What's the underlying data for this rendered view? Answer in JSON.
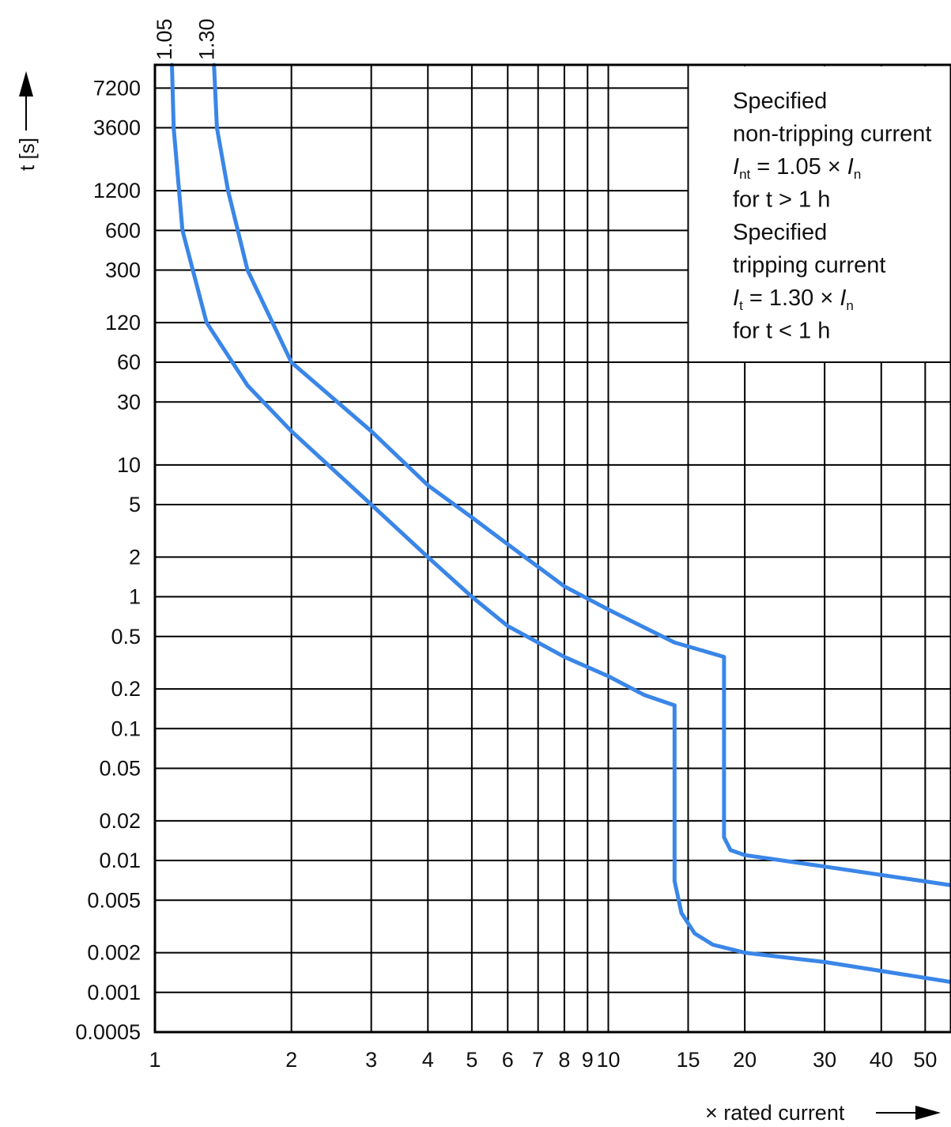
{
  "chart_data": {
    "type": "line",
    "title": "",
    "xlabel": "× rated current",
    "ylabel": "t [s]",
    "x_scale": "log",
    "y_scale": "log",
    "xlim": [
      1,
      57
    ],
    "ylim": [
      0.0005,
      10800
    ],
    "x_ticks": [
      {
        "value": 1,
        "label": "1"
      },
      {
        "value": 2,
        "label": "2"
      },
      {
        "value": 3,
        "label": "3"
      },
      {
        "value": 4,
        "label": "4"
      },
      {
        "value": 5,
        "label": "5"
      },
      {
        "value": 6,
        "label": "6"
      },
      {
        "value": 7,
        "label": "7"
      },
      {
        "value": 8,
        "label": "8"
      },
      {
        "value": 9,
        "label": "9"
      },
      {
        "value": 10,
        "label": "10"
      },
      {
        "value": 15,
        "label": "15"
      },
      {
        "value": 20,
        "label": "20"
      },
      {
        "value": 30,
        "label": "30"
      },
      {
        "value": 40,
        "label": "40"
      },
      {
        "value": 50,
        "label": "50"
      }
    ],
    "y_ticks": [
      {
        "value": 7200,
        "label": "7200"
      },
      {
        "value": 3600,
        "label": "3600"
      },
      {
        "value": 1200,
        "label": "1200"
      },
      {
        "value": 600,
        "label": "600"
      },
      {
        "value": 300,
        "label": "300"
      },
      {
        "value": 120,
        "label": "120"
      },
      {
        "value": 60,
        "label": "60"
      },
      {
        "value": 30,
        "label": "30"
      },
      {
        "value": 10,
        "label": "10"
      },
      {
        "value": 5,
        "label": "5"
      },
      {
        "value": 2,
        "label": "2"
      },
      {
        "value": 1,
        "label": "1"
      },
      {
        "value": 0.5,
        "label": "0.5"
      },
      {
        "value": 0.2,
        "label": "0.2"
      },
      {
        "value": 0.1,
        "label": "0.1"
      },
      {
        "value": 0.05,
        "label": "0.05"
      },
      {
        "value": 0.02,
        "label": "0.02"
      },
      {
        "value": 0.01,
        "label": "0.01"
      },
      {
        "value": 0.005,
        "label": "0.005"
      },
      {
        "value": 0.002,
        "label": "0.002"
      },
      {
        "value": 0.001,
        "label": "0.001"
      },
      {
        "value": 0.0005,
        "label": "0.0005"
      }
    ],
    "top_markers": [
      {
        "value": 1.05,
        "label": "1.05"
      },
      {
        "value": 1.3,
        "label": "1.30"
      }
    ],
    "grid": true,
    "series": [
      {
        "color": "#3a86e8",
        "points": [
          [
            1.09,
            10800
          ],
          [
            1.1,
            3600
          ],
          [
            1.15,
            600
          ],
          [
            1.3,
            120
          ],
          [
            1.6,
            40
          ],
          [
            2,
            18
          ],
          [
            3,
            5
          ],
          [
            4,
            2
          ],
          [
            5,
            1
          ],
          [
            6,
            0.6
          ],
          [
            8,
            0.35
          ],
          [
            10,
            0.25
          ],
          [
            12,
            0.18
          ],
          [
            14,
            0.15
          ],
          [
            14,
            0.007
          ],
          [
            14.5,
            0.004
          ],
          [
            15.5,
            0.0028
          ],
          [
            17,
            0.0023
          ],
          [
            20,
            0.002
          ],
          [
            30,
            0.0017
          ],
          [
            57,
            0.0012
          ]
        ]
      },
      {
        "color": "#3a86e8",
        "points": [
          [
            1.35,
            10800
          ],
          [
            1.37,
            3600
          ],
          [
            1.45,
            1200
          ],
          [
            1.6,
            300
          ],
          [
            2,
            60
          ],
          [
            3,
            18
          ],
          [
            4,
            7
          ],
          [
            5,
            4
          ],
          [
            6,
            2.5
          ],
          [
            8,
            1.2
          ],
          [
            10,
            0.8
          ],
          [
            14,
            0.45
          ],
          [
            18,
            0.35
          ],
          [
            18,
            0.015
          ],
          [
            18.6,
            0.012
          ],
          [
            20,
            0.011
          ],
          [
            30,
            0.009
          ],
          [
            57,
            0.0065
          ]
        ]
      }
    ],
    "legend": {
      "position": "top-right",
      "lines": [
        [
          {
            "text": "Specified"
          }
        ],
        [
          {
            "text": "non-tripping current"
          }
        ],
        [
          {
            "text": "I",
            "style": "italic"
          },
          {
            "text": "nt",
            "style": "sub"
          },
          {
            "text": " = 1.05 × "
          },
          {
            "text": "I",
            "style": "italic"
          },
          {
            "text": "n",
            "style": "sub"
          }
        ],
        [
          {
            "text": "for t > 1 h"
          }
        ],
        [
          {
            "text": "Specified"
          }
        ],
        [
          {
            "text": "tripping current"
          }
        ],
        [
          {
            "text": "I",
            "style": "italic"
          },
          {
            "text": "t",
            "style": "sub"
          },
          {
            "text": " = 1.30 × "
          },
          {
            "text": "I",
            "style": "italic"
          },
          {
            "text": "n",
            "style": "sub"
          }
        ],
        [
          {
            "text": "for t < 1 h"
          }
        ]
      ]
    }
  }
}
